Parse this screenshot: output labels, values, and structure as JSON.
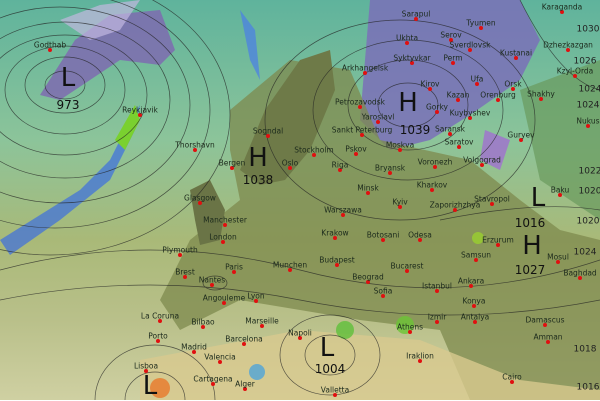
{
  "pressure_systems": [
    {
      "type": "L",
      "value": "973"
    },
    {
      "type": "H",
      "value": "1038"
    },
    {
      "type": "H",
      "value": "1039"
    },
    {
      "type": "L",
      "value": "1016"
    },
    {
      "type": "H",
      "value": "1027"
    },
    {
      "type": "L",
      "value": "1004"
    },
    {
      "type": "L",
      "value": ""
    }
  ],
  "isobar_labels": [
    "1030",
    "1026",
    "1024",
    "1024",
    "1022",
    "1020",
    "1020",
    "1024",
    "1018",
    "1016"
  ],
  "cities": [
    "Godthab",
    "Reykjavik",
    "Thorshavn",
    "Sogndal",
    "Bergen",
    "Oslo",
    "Stockholm",
    "Petrozavodsk",
    "Sankt Peterburg",
    "Arkhangelsk",
    "Syktyvkar",
    "Ukhta",
    "Sarapul",
    "Serov",
    "Tyumen",
    "Sverdlovsk",
    "Kustanai",
    "Karaganda",
    "Perm",
    "Kirov",
    "Gorky",
    "Yaroslavl",
    "Kazan",
    "Ufa",
    "Orsk",
    "Orenburg",
    "Kuybyshev",
    "Saransk",
    "Moskva",
    "Pskov",
    "Riga",
    "Minsk",
    "Bryansk",
    "Voronezh",
    "Saratov",
    "Volgograd",
    "Guryev",
    "Dzhezkazgan",
    "Kzyl-Orda",
    "Shakhy",
    "Nukus",
    "Baku",
    "Kharkov",
    "Zaporizhzhya",
    "Stavropol",
    "Warszawa",
    "Kyiv",
    "Krakow",
    "Botosani",
    "Odesa",
    "Budapest",
    "Bucarest",
    "Beograd",
    "Sofia",
    "Istanbul",
    "Ankara",
    "Samsun",
    "Erzurum",
    "Mosul",
    "Baghdad",
    "Konya",
    "Antalya",
    "Izmir",
    "Damascus",
    "Amman",
    "Cairo",
    "Athens",
    "Iraklion",
    "Valletta",
    "Napoli",
    "Glasgow",
    "Manchester",
    "London",
    "Plymouth",
    "Brest",
    "Nantes",
    "Paris",
    "Angouleme",
    "Lyon",
    "Marseille",
    "Munchen",
    "Bilbao",
    "La Coruna",
    "Porto",
    "Madrid",
    "Lisboa",
    "Valencia",
    "Barcelona",
    "Cartagena",
    "Alger"
  ]
}
